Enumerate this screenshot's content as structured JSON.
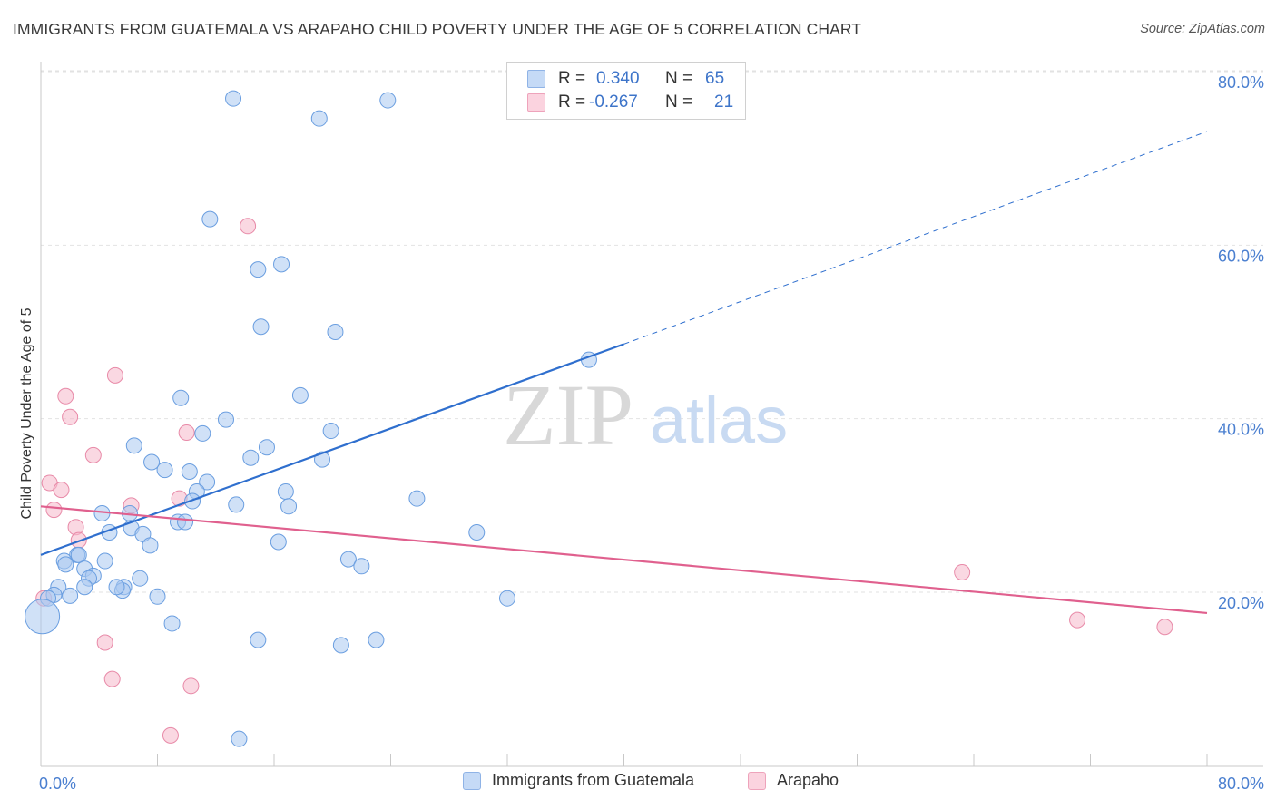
{
  "title": "IMMIGRANTS FROM GUATEMALA VS ARAPAHO CHILD POVERTY UNDER THE AGE OF 5 CORRELATION CHART",
  "source": "Source: ZipAtlas.com",
  "watermark": {
    "zip": "ZIP",
    "atlas": "atlas"
  },
  "legend_top": [
    {
      "r_label": "R =",
      "r_value": "0.340",
      "n_label": "N =",
      "n_value": "65",
      "color": "#aac8f0"
    },
    {
      "r_label": "R =",
      "r_value": "-0.267",
      "n_label": "N =",
      "n_value": "21",
      "color": "#f5b8cb"
    }
  ],
  "legend_bottom": [
    {
      "label": "Immigrants from Guatemala",
      "color": "#aac8f0"
    },
    {
      "label": "Arapaho",
      "color": "#f5b8cb"
    }
  ],
  "chart_data": {
    "type": "scatter",
    "ylabel": "Child Poverty Under the Age of 5",
    "xlim": [
      0,
      80
    ],
    "ylim": [
      0,
      82
    ],
    "x_tick_labels": [
      {
        "value": 0,
        "label": "0.0%"
      },
      {
        "value": 80,
        "label": "80.0%"
      }
    ],
    "y_tick_labels": [
      {
        "value": 20,
        "label": "20.0%"
      },
      {
        "value": 40,
        "label": "40.0%"
      },
      {
        "value": 60,
        "label": "60.0%"
      },
      {
        "value": 80,
        "label": "80.0%"
      }
    ],
    "series": [
      {
        "name": "Immigrants from Guatemala",
        "color": "#aac8f0",
        "stroke": "#6a9ee0",
        "trend": {
          "x0": 0,
          "y0": 24.3,
          "x1": 40,
          "y1": 48.6,
          "dash_x1": 80,
          "dash_y1": 73.1,
          "color": "#2f6fce"
        },
        "points": [
          [
            13.2,
            76.9
          ],
          [
            19.1,
            74.6
          ],
          [
            23.8,
            76.7
          ],
          [
            11.6,
            63.0
          ],
          [
            14.9,
            57.2
          ],
          [
            16.5,
            57.8
          ],
          [
            15.1,
            50.6
          ],
          [
            20.2,
            50.0
          ],
          [
            37.6,
            46.8
          ],
          [
            9.6,
            42.4
          ],
          [
            17.8,
            42.7
          ],
          [
            12.7,
            39.9
          ],
          [
            11.1,
            38.3
          ],
          [
            19.9,
            38.6
          ],
          [
            6.4,
            36.9
          ],
          [
            15.5,
            36.7
          ],
          [
            7.6,
            35.0
          ],
          [
            14.4,
            35.5
          ],
          [
            19.3,
            35.3
          ],
          [
            8.5,
            34.1
          ],
          [
            10.2,
            33.9
          ],
          [
            11.4,
            32.7
          ],
          [
            10.7,
            31.6
          ],
          [
            16.8,
            31.6
          ],
          [
            25.8,
            30.8
          ],
          [
            10.4,
            30.5
          ],
          [
            13.4,
            30.1
          ],
          [
            17.0,
            29.9
          ],
          [
            4.2,
            29.1
          ],
          [
            6.1,
            29.1
          ],
          [
            9.4,
            28.1
          ],
          [
            9.9,
            28.1
          ],
          [
            6.2,
            27.4
          ],
          [
            4.7,
            26.9
          ],
          [
            7.0,
            26.7
          ],
          [
            29.9,
            26.9
          ],
          [
            7.5,
            25.4
          ],
          [
            16.3,
            25.8
          ],
          [
            2.5,
            24.3
          ],
          [
            2.6,
            24.3
          ],
          [
            1.6,
            23.6
          ],
          [
            1.7,
            23.2
          ],
          [
            4.4,
            23.6
          ],
          [
            21.1,
            23.8
          ],
          [
            22.0,
            23.0
          ],
          [
            3.0,
            22.7
          ],
          [
            3.6,
            21.9
          ],
          [
            3.3,
            21.6
          ],
          [
            6.8,
            21.6
          ],
          [
            1.2,
            20.6
          ],
          [
            3.0,
            20.6
          ],
          [
            5.7,
            20.6
          ],
          [
            5.6,
            20.2
          ],
          [
            5.2,
            20.6
          ],
          [
            0.9,
            19.7
          ],
          [
            0.5,
            19.3
          ],
          [
            2.0,
            19.6
          ],
          [
            8.0,
            19.5
          ],
          [
            32.0,
            19.3
          ],
          [
            0.1,
            17.2
          ],
          [
            9.0,
            16.4
          ],
          [
            14.9,
            14.5
          ],
          [
            20.6,
            13.9
          ],
          [
            23.0,
            14.5
          ],
          [
            13.6,
            3.1
          ]
        ]
      },
      {
        "name": "Arapaho",
        "color": "#f5b8cb",
        "stroke": "#e88aa8",
        "trend": {
          "x0": 0,
          "y0": 29.9,
          "x1": 80,
          "y1": 17.6,
          "color": "#e0608e"
        },
        "points": [
          [
            14.2,
            62.2
          ],
          [
            5.1,
            45.0
          ],
          [
            1.7,
            42.6
          ],
          [
            2.0,
            40.2
          ],
          [
            10.0,
            38.4
          ],
          [
            3.6,
            35.8
          ],
          [
            0.6,
            32.6
          ],
          [
            1.4,
            31.8
          ],
          [
            9.5,
            30.8
          ],
          [
            6.2,
            30.0
          ],
          [
            0.9,
            29.5
          ],
          [
            2.4,
            27.5
          ],
          [
            2.6,
            26.0
          ],
          [
            63.2,
            22.3
          ],
          [
            0.2,
            19.3
          ],
          [
            71.1,
            16.8
          ],
          [
            77.1,
            16.0
          ],
          [
            4.4,
            14.2
          ],
          [
            4.9,
            10.0
          ],
          [
            10.3,
            9.2
          ],
          [
            8.9,
            3.5
          ]
        ]
      }
    ]
  }
}
